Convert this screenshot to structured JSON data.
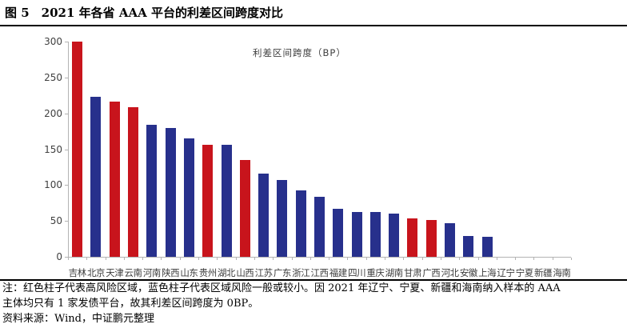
{
  "title": {
    "label": "图 5",
    "text": "2021 年各省 AAA 平台的利差区间跨度对比"
  },
  "chart_data": {
    "type": "bar",
    "title": "利差区间跨度（BP）",
    "legend_position": "top-center",
    "grid": false,
    "ylim": [
      0,
      300
    ],
    "yticks": [
      0,
      50,
      100,
      150,
      200,
      250,
      300
    ],
    "categories": [
      "吉林",
      "北京",
      "天津",
      "云南",
      "河南",
      "陕西",
      "山东",
      "贵州",
      "湖北",
      "山西",
      "江苏",
      "广东",
      "浙江",
      "江西",
      "福建",
      "四川",
      "重庆",
      "湖南",
      "甘肃",
      "广西",
      "河北",
      "安徽",
      "上海",
      "辽宁",
      "宁夏",
      "新疆",
      "海南"
    ],
    "values": [
      300,
      223,
      216,
      209,
      184,
      180,
      165,
      156,
      156,
      135,
      116,
      107,
      93,
      84,
      67,
      63,
      63,
      60,
      54,
      51,
      47,
      29,
      28,
      0,
      0,
      0,
      0
    ],
    "risk_flags": [
      "high",
      "normal",
      "high",
      "high",
      "normal",
      "normal",
      "normal",
      "high",
      "normal",
      "high",
      "normal",
      "normal",
      "normal",
      "normal",
      "normal",
      "normal",
      "normal",
      "normal",
      "high",
      "high",
      "normal",
      "normal",
      "normal",
      "normal",
      "normal",
      "normal",
      "normal"
    ],
    "bar_colors": {
      "high": "#C8141C",
      "normal": "#27308C"
    },
    "axis_color": "#b3b3b3"
  },
  "notes": {
    "line1": "注：红色柱子代表高风险区域，蓝色柱子代表区域风险一般或较小。因 2021 年辽宁、宁夏、新疆和海南纳入样本的 AAA",
    "line2": "主体均只有 1 家发债平台，故其利差区间跨度为 0BP。",
    "source": "资料来源：Wind，中证鹏元整理"
  }
}
